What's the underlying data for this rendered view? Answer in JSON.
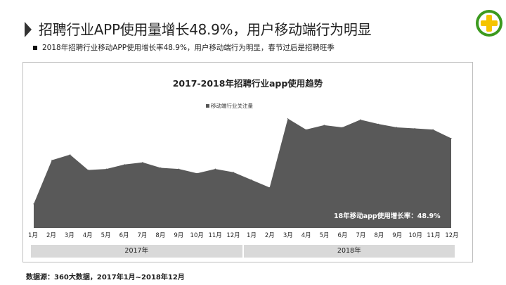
{
  "header": {
    "title": "招聘行业APP使用量增长48.9%，用户移动端行为明显",
    "subtitle": "2018年招聘行业移动APP使用增长率48.9%，用户移动端行为明显，春节过后是招聘旺季"
  },
  "logo": {
    "icon": "plus-circle-icon",
    "colors": [
      "#3c9a1e",
      "#f5c400"
    ]
  },
  "chart_data": {
    "type": "area",
    "title": "2017-2018年招聘行业app使用趋势",
    "categories": [
      "1月",
      "2月",
      "3月",
      "4月",
      "5月",
      "6月",
      "7月",
      "8月",
      "9月",
      "10月",
      "11月",
      "12月",
      "1月",
      "2月",
      "3月",
      "4月",
      "5月",
      "6月",
      "7月",
      "8月",
      "9月",
      "10月",
      "11月",
      "12月"
    ],
    "year_groups": [
      {
        "label": "2017年",
        "span": 12
      },
      {
        "label": "2018年",
        "span": 12
      }
    ],
    "series": [
      {
        "name": "移动端行业关注量",
        "color": "#595959",
        "values": [
          22,
          62,
          67,
          53,
          54,
          58,
          60,
          55,
          54,
          50,
          54,
          51,
          44,
          37,
          100,
          90,
          94,
          92,
          99,
          95,
          92,
          91,
          90,
          82
        ]
      }
    ],
    "ylim": [
      0,
      110
    ],
    "grid": false,
    "legend": "top-center",
    "annotation": "18年移动app使用增长率：48.9%"
  },
  "footer": {
    "source": "数据源：360大数据，2017年1月~2018年12月"
  }
}
